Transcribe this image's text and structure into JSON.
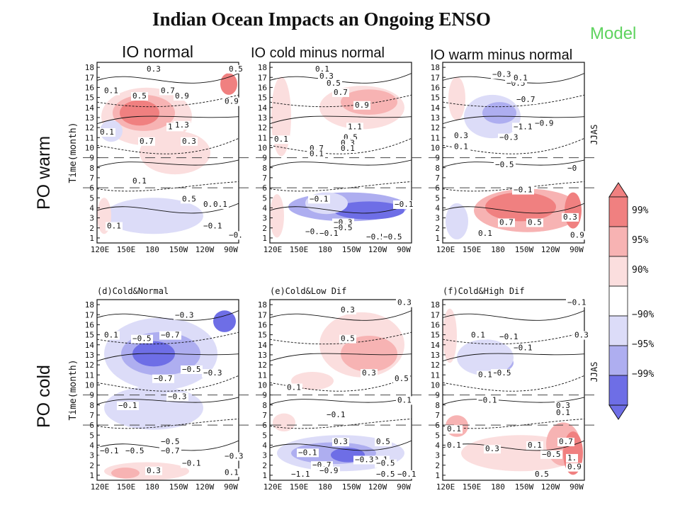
{
  "title": "Indian Ocean Impacts an Ongoing ENSO",
  "model_label": "Model",
  "column_titles": [
    "IO normal",
    "IO cold minus normal",
    "IO warm minus normal"
  ],
  "row_labels": [
    "PO warm",
    "PO cold"
  ],
  "colors": {
    "pos99": "#f08080",
    "pos95": "#f7b3b3",
    "pos90": "#fbdede",
    "neg90": "#dcdcf8",
    "neg95": "#aeaef0",
    "neg99": "#6e6ee6",
    "contour": "#111111"
  },
  "legend": {
    "labels": [
      "99%",
      "95%",
      "90%",
      "−90%",
      "−95%",
      "−99%"
    ]
  },
  "chart_data": [
    {
      "type": "heatmap",
      "panel": "a",
      "label": "",
      "x_tick_labels": [
        "120E",
        "150E",
        "180",
        "150W",
        "120W",
        "90W"
      ],
      "y_ticks": [
        1,
        2,
        3,
        4,
        5,
        6,
        7,
        8,
        9,
        10,
        11,
        12,
        13,
        14,
        15,
        16,
        17,
        18
      ],
      "ylabel": "Time(month)",
      "season_label": "",
      "contour_labels": [
        "0.3",
        "0.5",
        "0.7",
        "0.9",
        "1.1",
        "1.3",
        "0.1",
        "0.7",
        "0.3",
        "0.1",
        "0.5",
        "0.3",
        "0.1",
        "0.1",
        "−0.1",
        "−0.",
        "0.5",
        "0.9",
        "0.1"
      ]
    },
    {
      "type": "heatmap",
      "panel": "b",
      "label": "",
      "x_tick_labels": [
        "120E",
        "150E",
        "180",
        "150W",
        "120W",
        "90W"
      ],
      "y_ticks": [
        1,
        2,
        3,
        4,
        5,
        6,
        7,
        8,
        9,
        10,
        11,
        12,
        13,
        14,
        15,
        16,
        17,
        18
      ],
      "season_label": "",
      "contour_labels": [
        "0.1",
        "0.3",
        "0.5",
        "0.7",
        "0.9",
        "1.1",
        "0.5",
        "0.3",
        "0.1",
        "0.7",
        "0.1",
        "0.1",
        "−0.1",
        "−0.3",
        "−0.5",
        "−0.",
        "−0.1",
        "−0.5",
        "−0.5",
        "−0.1"
      ]
    },
    {
      "type": "heatmap",
      "panel": "c",
      "label": "",
      "x_tick_labels": [
        "120E",
        "150E",
        "180",
        "150W",
        "120W",
        "90W"
      ],
      "y_ticks": [
        1,
        2,
        3,
        4,
        5,
        6,
        7,
        8,
        9,
        10,
        11,
        12,
        13,
        14,
        15,
        16,
        17,
        18
      ],
      "season_label": "JJAS",
      "contour_labels": [
        "−0.3",
        "−0.5",
        "0.1",
        "−0.7",
        "−1.1",
        "−0.9",
        "0.3",
        "0.1",
        "−0.3",
        "−0.5",
        "−0.1",
        "0.1",
        "0.3",
        "0.7",
        "0.5",
        "0.9",
        "−0"
      ]
    },
    {
      "type": "heatmap",
      "panel": "d",
      "label": "(d)Cold&Normal",
      "x_tick_labels": [
        "120E",
        "150E",
        "180",
        "150W",
        "120W",
        "90W"
      ],
      "y_ticks": [
        1,
        2,
        3,
        4,
        5,
        6,
        7,
        8,
        9,
        10,
        11,
        12,
        13,
        14,
        15,
        16,
        17,
        18
      ],
      "ylabel": "Time(month)",
      "season_label": "",
      "contour_labels": [
        "−0.3",
        "−0.5",
        "−0.7",
        "0.1",
        "−0.5",
        "−0.3",
        "−0.7",
        "−0.3",
        "−0.1",
        "−0.1",
        "−0.5",
        "−0.5",
        "−0.7",
        "−0.1",
        "0.3",
        "0.1",
        "−0.3"
      ]
    },
    {
      "type": "heatmap",
      "panel": "e",
      "label": "(e)Cold&Low Dif",
      "x_tick_labels": [
        "120E",
        "150E",
        "180",
        "150W",
        "120W",
        "90W"
      ],
      "y_ticks": [
        1,
        2,
        3,
        4,
        5,
        6,
        7,
        8,
        9,
        10,
        11,
        12,
        13,
        14,
        15,
        16,
        17,
        18
      ],
      "season_label": "",
      "contour_labels": [
        "0.3",
        "0.3",
        "0.5",
        "0.1",
        "0.5",
        "0.3",
        "0.1",
        "−0.1",
        "0.3",
        "0.5",
        "−0.1",
        "−0.1",
        "−0.3",
        "−0.5",
        "−0.7",
        "−0.9",
        "−1.1",
        "−0.5",
        "−0.1"
      ]
    },
    {
      "type": "heatmap",
      "panel": "f",
      "label": "(f)Cold&High Dif",
      "x_tick_labels": [
        "120E",
        "150E",
        "180",
        "150W",
        "120W",
        "90W"
      ],
      "y_ticks": [
        1,
        2,
        3,
        4,
        5,
        6,
        7,
        8,
        9,
        10,
        11,
        12,
        13,
        14,
        15,
        16,
        17,
        18
      ],
      "season_label": "JJAS",
      "contour_labels": [
        "−0.1",
        "0.3",
        "0.1",
        "−0.1",
        "−0.1",
        "−0.5",
        "0.1",
        "−0.1",
        "0.3",
        "0.1",
        "0.1",
        "0.7",
        "0.1",
        "0.3",
        "0.1",
        "−0.5",
        "1.",
        "0.5",
        "0.9"
      ]
    }
  ]
}
